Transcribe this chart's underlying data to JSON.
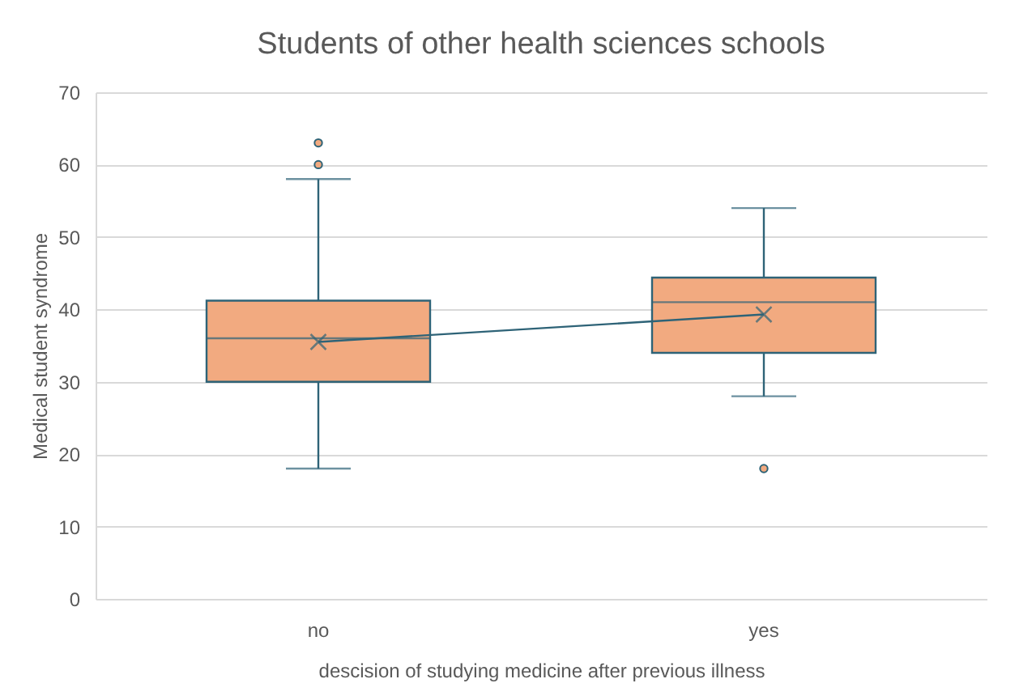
{
  "chart_data": {
    "type": "box",
    "title": "Students of other health sciences schools",
    "xlabel": "descision of studying medicine after previous illness",
    "ylabel": "Medical student syndrome",
    "categories": [
      "no",
      "yes"
    ],
    "series": [
      {
        "color": "#f2aa80",
        "boxes": [
          {
            "low": 18,
            "q1": 30,
            "median": 36,
            "q3": 41.2,
            "high": 58,
            "mean": 35.5,
            "outliers": [
              60,
              63
            ]
          },
          {
            "low": 28,
            "q1": 34,
            "median": 41,
            "q3": 44.4,
            "high": 54,
            "mean": 39.3,
            "outliers": [
              18
            ]
          }
        ]
      },
      {
        "type": "line",
        "color": "#2e6377",
        "values": [
          35.5,
          39.3
        ]
      }
    ],
    "ylim": [
      0,
      70
    ],
    "yticks": [
      0,
      10,
      20,
      30,
      40,
      50,
      60,
      70
    ],
    "grid": "y"
  }
}
